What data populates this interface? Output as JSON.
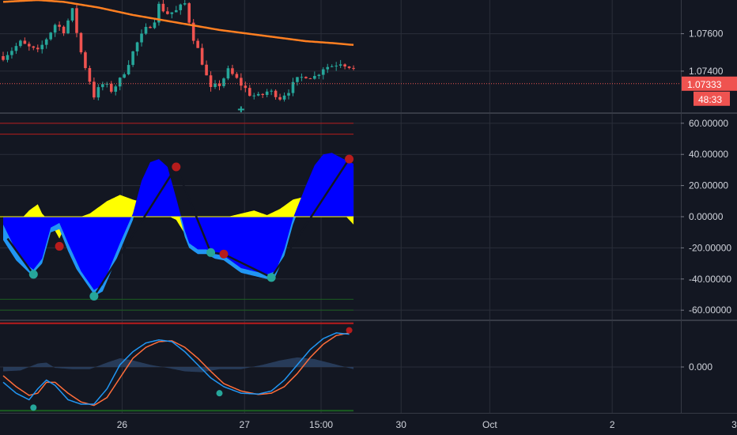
{
  "chart_data": [
    {
      "type": "candlestick",
      "pane": "price",
      "y_ticks": [
        1.076,
        1.074
      ],
      "y_tick_labels": [
        "1.07600",
        "1.07400"
      ],
      "ylim": [
        1.0718,
        1.0778
      ],
      "last_price": 1.07333,
      "last_price_label": "1.07333",
      "countdown_label": "48:33",
      "colors": {
        "up": "#26a69a",
        "down": "#ef5350",
        "ma": "#ff7f21",
        "last_line": "#ef5350"
      },
      "close_path": [
        [
          0,
          1.0748
        ],
        [
          4,
          1.0755
        ],
        [
          8,
          1.075
        ],
        [
          12,
          1.0765
        ],
        [
          14,
          1.0762
        ],
        [
          16,
          1.0772
        ],
        [
          18,
          1.075
        ],
        [
          20,
          1.0735
        ],
        [
          21,
          1.0727
        ],
        [
          23,
          1.0733
        ],
        [
          25,
          1.073
        ],
        [
          27,
          1.0735
        ],
        [
          29,
          1.0745
        ],
        [
          31,
          1.0755
        ],
        [
          33,
          1.0762
        ],
        [
          35,
          1.0768
        ],
        [
          36,
          1.0775
        ],
        [
          38,
          1.0771
        ],
        [
          40,
          1.0772
        ],
        [
          42,
          1.0776
        ],
        [
          44,
          1.0758
        ],
        [
          46,
          1.0745
        ],
        [
          47,
          1.0737
        ],
        [
          48,
          1.073
        ],
        [
          50,
          1.0733
        ],
        [
          52,
          1.074
        ],
        [
          53,
          1.0738
        ],
        [
          55,
          1.0733
        ],
        [
          57,
          1.0728
        ],
        [
          59,
          1.0726
        ],
        [
          61,
          1.0729
        ],
        [
          63,
          1.0728
        ],
        [
          64,
          1.0726
        ],
        [
          66,
          1.073
        ],
        [
          68,
          1.0735
        ],
        [
          70,
          1.0738
        ],
        [
          72,
          1.0737
        ],
        [
          74,
          1.0742
        ],
        [
          76,
          1.0743
        ],
        [
          78,
          1.0745
        ],
        [
          80,
          1.0743
        ],
        [
          81,
          1.0741
        ]
      ],
      "ma_path": [
        [
          0,
          1.0777
        ],
        [
          8,
          1.0778
        ],
        [
          14,
          1.0777
        ],
        [
          22,
          1.0774
        ],
        [
          30,
          1.077
        ],
        [
          40,
          1.0766
        ],
        [
          50,
          1.0762
        ],
        [
          60,
          1.0759
        ],
        [
          70,
          1.0756
        ],
        [
          76,
          1.0755
        ],
        [
          81,
          1.0754
        ]
      ],
      "signal_markers": [
        {
          "bar": 55,
          "price": 1.07195,
          "symbol": "+",
          "color": "#26a69a"
        }
      ]
    },
    {
      "type": "area",
      "pane": "oscillator",
      "y_ticks": [
        60,
        40,
        20,
        0,
        -20,
        -40,
        -60
      ],
      "y_tick_labels": [
        "60.00000",
        "40.00000",
        "20.00000",
        "0.00000",
        "-20.00000",
        "-40.00000",
        "-60.00000"
      ],
      "ylim": [
        -66,
        66
      ],
      "levels": [
        {
          "value": 60,
          "color": "#b71c1c"
        },
        {
          "value": 53,
          "color": "#b71c1c"
        },
        {
          "value": -53,
          "color": "#1b5e20"
        },
        {
          "value": -60,
          "color": "#1b5e20"
        }
      ],
      "series": [
        {
          "role": "histogram",
          "color": "#ffff00",
          "values": [
            [
              0,
              -12
            ],
            [
              3,
              -5
            ],
            [
              6,
              4
            ],
            [
              8,
              8
            ],
            [
              9,
              2
            ],
            [
              11,
              -4
            ],
            [
              13,
              -14
            ],
            [
              14,
              -8
            ],
            [
              16,
              -2
            ],
            [
              20,
              2
            ],
            [
              24,
              10
            ],
            [
              27,
              14
            ],
            [
              30,
              11
            ],
            [
              34,
              8
            ],
            [
              37,
              2
            ],
            [
              40,
              -2
            ],
            [
              42,
              -11
            ],
            [
              44,
              -17
            ],
            [
              45,
              -12
            ],
            [
              47,
              -6
            ],
            [
              49,
              -3
            ],
            [
              52,
              0
            ],
            [
              55,
              2
            ],
            [
              58,
              4
            ],
            [
              61,
              1
            ],
            [
              64,
              5
            ],
            [
              67,
              11
            ],
            [
              70,
              13
            ],
            [
              73,
              11
            ],
            [
              76,
              7
            ],
            [
              79,
              1
            ],
            [
              81,
              -5
            ]
          ]
        },
        {
          "role": "outer_wave",
          "color": "#2196f3",
          "values": [
            [
              0,
              -15
            ],
            [
              3,
              -28
            ],
            [
              6,
              -36
            ],
            [
              7,
              -38
            ],
            [
              9,
              -30
            ],
            [
              11,
              -10
            ],
            [
              13,
              -8
            ],
            [
              15,
              -22
            ],
            [
              18,
              -40
            ],
            [
              21,
              -51
            ],
            [
              23,
              -48
            ],
            [
              27,
              -22
            ],
            [
              30,
              -2
            ],
            [
              32,
              20
            ],
            [
              34,
              32
            ],
            [
              36,
              34
            ],
            [
              38,
              29
            ],
            [
              40,
              9
            ],
            [
              42,
              -13
            ],
            [
              43,
              -20
            ],
            [
              45,
              -24
            ],
            [
              47,
              -24
            ],
            [
              49,
              -27
            ],
            [
              51,
              -28
            ],
            [
              53,
              -32
            ],
            [
              55,
              -36
            ],
            [
              58,
              -38
            ],
            [
              61,
              -40
            ],
            [
              63,
              -38
            ],
            [
              65,
              -25
            ],
            [
              67,
              -5
            ],
            [
              70,
              17
            ],
            [
              72,
              30
            ],
            [
              74,
              38
            ],
            [
              76,
              40
            ],
            [
              78,
              38
            ],
            [
              81,
              32
            ]
          ]
        },
        {
          "role": "inner_wave",
          "color": "#0000ff",
          "values": [
            [
              0,
              -5
            ],
            [
              3,
              -22
            ],
            [
              6,
              -32
            ],
            [
              7,
              -34
            ],
            [
              9,
              -27
            ],
            [
              11,
              -7
            ],
            [
              13,
              -4
            ],
            [
              15,
              -17
            ],
            [
              18,
              -35
            ],
            [
              21,
              -47
            ],
            [
              23,
              -44
            ],
            [
              27,
              -17
            ],
            [
              30,
              2
            ],
            [
              32,
              23
            ],
            [
              34,
              35
            ],
            [
              36,
              37
            ],
            [
              38,
              32
            ],
            [
              40,
              12
            ],
            [
              42,
              -9
            ],
            [
              43,
              -17
            ],
            [
              45,
              -21
            ],
            [
              47,
              -21
            ],
            [
              49,
              -24
            ],
            [
              51,
              -25
            ],
            [
              53,
              -29
            ],
            [
              55,
              -33
            ],
            [
              58,
              -35
            ],
            [
              61,
              -37
            ],
            [
              63,
              -35
            ],
            [
              65,
              -21
            ],
            [
              67,
              -1
            ],
            [
              70,
              20
            ],
            [
              72,
              33
            ],
            [
              74,
              40
            ],
            [
              76,
              41
            ],
            [
              78,
              38
            ],
            [
              81,
              34
            ]
          ]
        },
        {
          "role": "zigzag",
          "color": "#131722",
          "values": [
            [
              1,
              -14
            ],
            [
              7,
              -37
            ],
            [
              13,
              -19
            ],
            [
              21,
              -51
            ],
            [
              40,
              32
            ],
            [
              48,
              -23
            ],
            [
              51,
              -24
            ],
            [
              62,
              -39
            ],
            [
              80,
              37
            ]
          ]
        }
      ],
      "pivot_markers": [
        {
          "bar": 7,
          "value": -37,
          "color": "#26a69a"
        },
        {
          "bar": 13,
          "value": -19,
          "color": "#b71c1c"
        },
        {
          "bar": 21,
          "value": -51,
          "color": "#26a69a"
        },
        {
          "bar": 40,
          "value": 32,
          "color": "#b71c1c"
        },
        {
          "bar": 48,
          "value": -23,
          "color": "#26a69a"
        },
        {
          "bar": 51,
          "value": -24,
          "color": "#b71c1c"
        },
        {
          "bar": 62,
          "value": -39,
          "color": "#26a69a"
        },
        {
          "bar": 80,
          "value": 37,
          "color": "#b71c1c"
        }
      ]
    },
    {
      "type": "line",
      "pane": "stochastic",
      "y_ticks": [
        0
      ],
      "y_tick_labels": [
        "0.000"
      ],
      "ylim": [
        -1.05,
        1.05
      ],
      "levels": [
        {
          "value": 1.0,
          "color": "#b71c1c"
        },
        {
          "value": -1.0,
          "color": "#1b5e20"
        }
      ],
      "series": [
        {
          "role": "fast",
          "color": "#2196f3",
          "values": [
            [
              0,
              -0.35
            ],
            [
              3,
              -0.6
            ],
            [
              6,
              -0.75
            ],
            [
              8,
              -0.5
            ],
            [
              10,
              -0.3
            ],
            [
              12,
              -0.42
            ],
            [
              15,
              -0.75
            ],
            [
              18,
              -0.85
            ],
            [
              21,
              -0.85
            ],
            [
              24,
              -0.5
            ],
            [
              27,
              0.05
            ],
            [
              30,
              0.35
            ],
            [
              33,
              0.55
            ],
            [
              36,
              0.62
            ],
            [
              39,
              0.58
            ],
            [
              42,
              0.35
            ],
            [
              45,
              0.05
            ],
            [
              48,
              -0.25
            ],
            [
              51,
              -0.45
            ],
            [
              55,
              -0.6
            ],
            [
              59,
              -0.62
            ],
            [
              62,
              -0.55
            ],
            [
              65,
              -0.3
            ],
            [
              68,
              0.05
            ],
            [
              71,
              0.4
            ],
            [
              74,
              0.65
            ],
            [
              77,
              0.78
            ],
            [
              80,
              0.75
            ]
          ]
        },
        {
          "role": "slow",
          "color": "#ff6d3a",
          "values": [
            [
              0,
              -0.2
            ],
            [
              3,
              -0.45
            ],
            [
              6,
              -0.65
            ],
            [
              8,
              -0.6
            ],
            [
              10,
              -0.35
            ],
            [
              12,
              -0.35
            ],
            [
              15,
              -0.6
            ],
            [
              18,
              -0.8
            ],
            [
              21,
              -0.88
            ],
            [
              24,
              -0.7
            ],
            [
              27,
              -0.25
            ],
            [
              30,
              0.2
            ],
            [
              33,
              0.45
            ],
            [
              36,
              0.58
            ],
            [
              39,
              0.6
            ],
            [
              42,
              0.45
            ],
            [
              45,
              0.2
            ],
            [
              48,
              -0.1
            ],
            [
              51,
              -0.38
            ],
            [
              55,
              -0.55
            ],
            [
              59,
              -0.63
            ],
            [
              62,
              -0.6
            ],
            [
              65,
              -0.45
            ],
            [
              68,
              -0.15
            ],
            [
              71,
              0.22
            ],
            [
              74,
              0.52
            ],
            [
              77,
              0.72
            ],
            [
              80,
              0.78
            ]
          ]
        },
        {
          "role": "histogram",
          "color": "#2a3f5f",
          "values": [
            [
              0,
              -0.1
            ],
            [
              4,
              -0.08
            ],
            [
              8,
              0.08
            ],
            [
              10,
              0.1
            ],
            [
              12,
              -0.02
            ],
            [
              16,
              -0.05
            ],
            [
              20,
              -0.05
            ],
            [
              24,
              0.1
            ],
            [
              27,
              0.2
            ],
            [
              30,
              0.15
            ],
            [
              34,
              0.05
            ],
            [
              38,
              -0.02
            ],
            [
              42,
              -0.1
            ],
            [
              46,
              -0.12
            ],
            [
              50,
              -0.05
            ],
            [
              55,
              -0.05
            ],
            [
              60,
              0.05
            ],
            [
              64,
              0.15
            ],
            [
              68,
              0.22
            ],
            [
              72,
              0.18
            ],
            [
              76,
              0.08
            ],
            [
              81,
              -0.05
            ]
          ]
        }
      ],
      "pivot_markers": [
        {
          "bar": 7,
          "value": -0.93,
          "color": "#26a69a"
        },
        {
          "bar": 50,
          "value": -0.6,
          "color": "#26a69a"
        },
        {
          "bar": 80,
          "value": 0.84,
          "color": "#b71c1c"
        }
      ]
    }
  ],
  "time_axis": {
    "label_color": "#d1d4dc",
    "ticks": [
      {
        "bar": 27.5,
        "label": "26"
      },
      {
        "bar": 55.8,
        "label": "27"
      },
      {
        "bar": 73.5,
        "label": "15:00"
      },
      {
        "bar": 92,
        "label": "30"
      },
      {
        "bar": 112.5,
        "label": "Oct"
      },
      {
        "bar": 140.8,
        "label": "2"
      },
      {
        "bar": 169,
        "label": "3"
      }
    ],
    "bar_range": [
      0,
      186
    ]
  },
  "theme": {
    "background": "#131722",
    "grid": "#2a2e39",
    "separator": "#363a45",
    "last_price_badge": "#ef5350",
    "badge_text": "#ffffff"
  }
}
